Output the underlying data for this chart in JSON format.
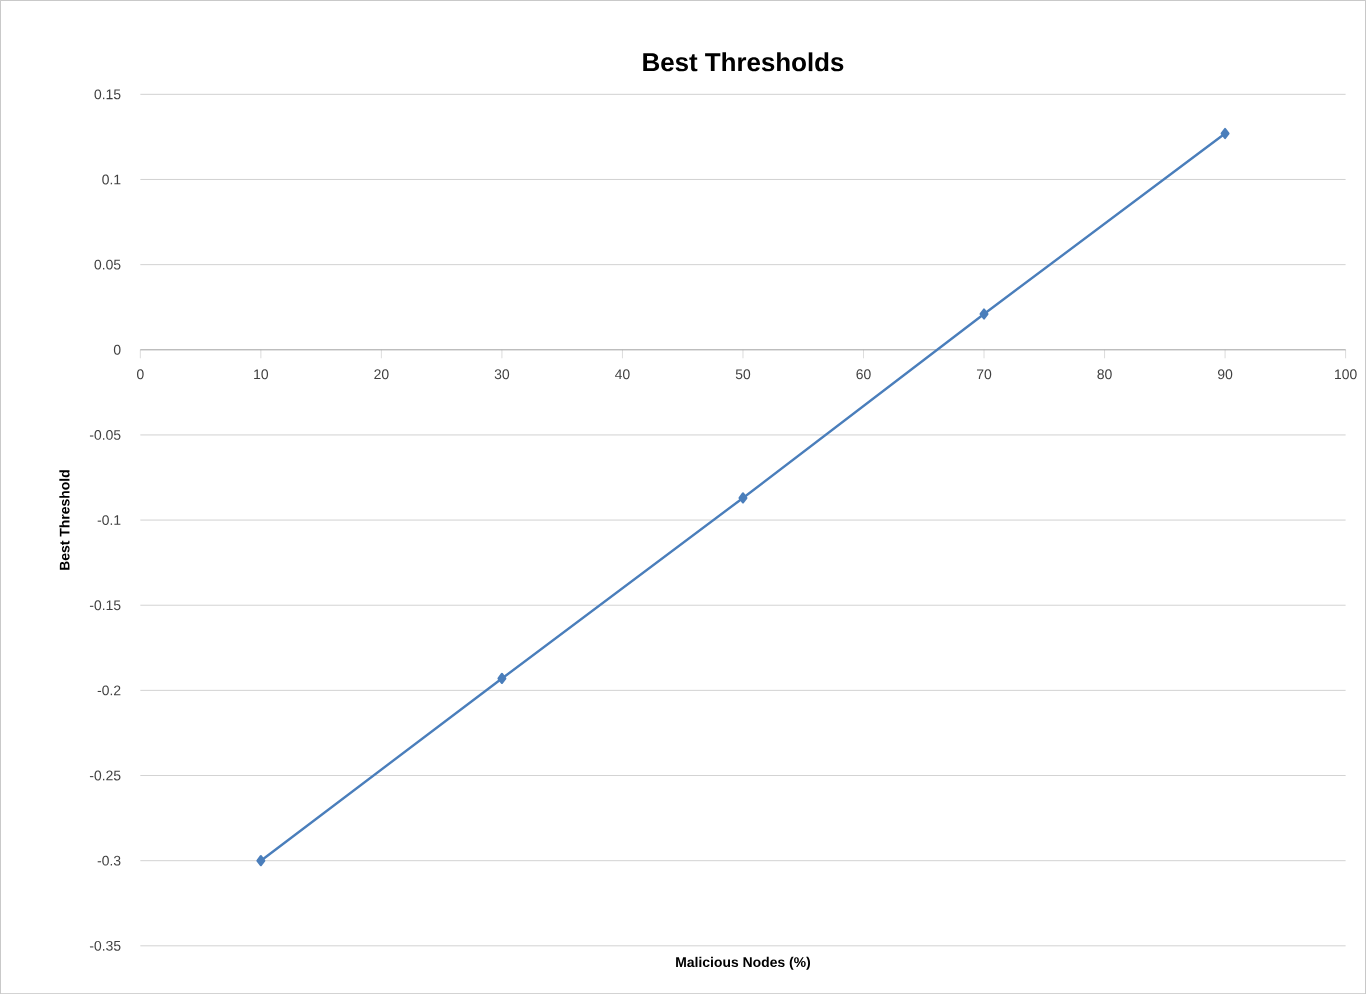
{
  "chart_data": {
    "type": "line",
    "title": "Best Thresholds",
    "xlabel": "Malicious Nodes (%)",
    "ylabel": "Best Threshold",
    "x": [
      10,
      30,
      50,
      70,
      90
    ],
    "series": [
      {
        "color": "#4a7ebb",
        "values": [
          -0.3,
          -0.193,
          -0.087,
          0.021,
          0.127
        ]
      }
    ],
    "xlim": [
      0,
      100
    ],
    "xticks": [
      0,
      10,
      20,
      30,
      40,
      50,
      60,
      70,
      80,
      90,
      100
    ],
    "ylim": [
      -0.35,
      0.15
    ],
    "yticks": [
      -0.35,
      -0.3,
      -0.25,
      -0.2,
      -0.15,
      -0.1,
      -0.05,
      0,
      0.05,
      0.1,
      0.15
    ],
    "grid": "y",
    "marker": "diamond",
    "line_style": "solid"
  }
}
